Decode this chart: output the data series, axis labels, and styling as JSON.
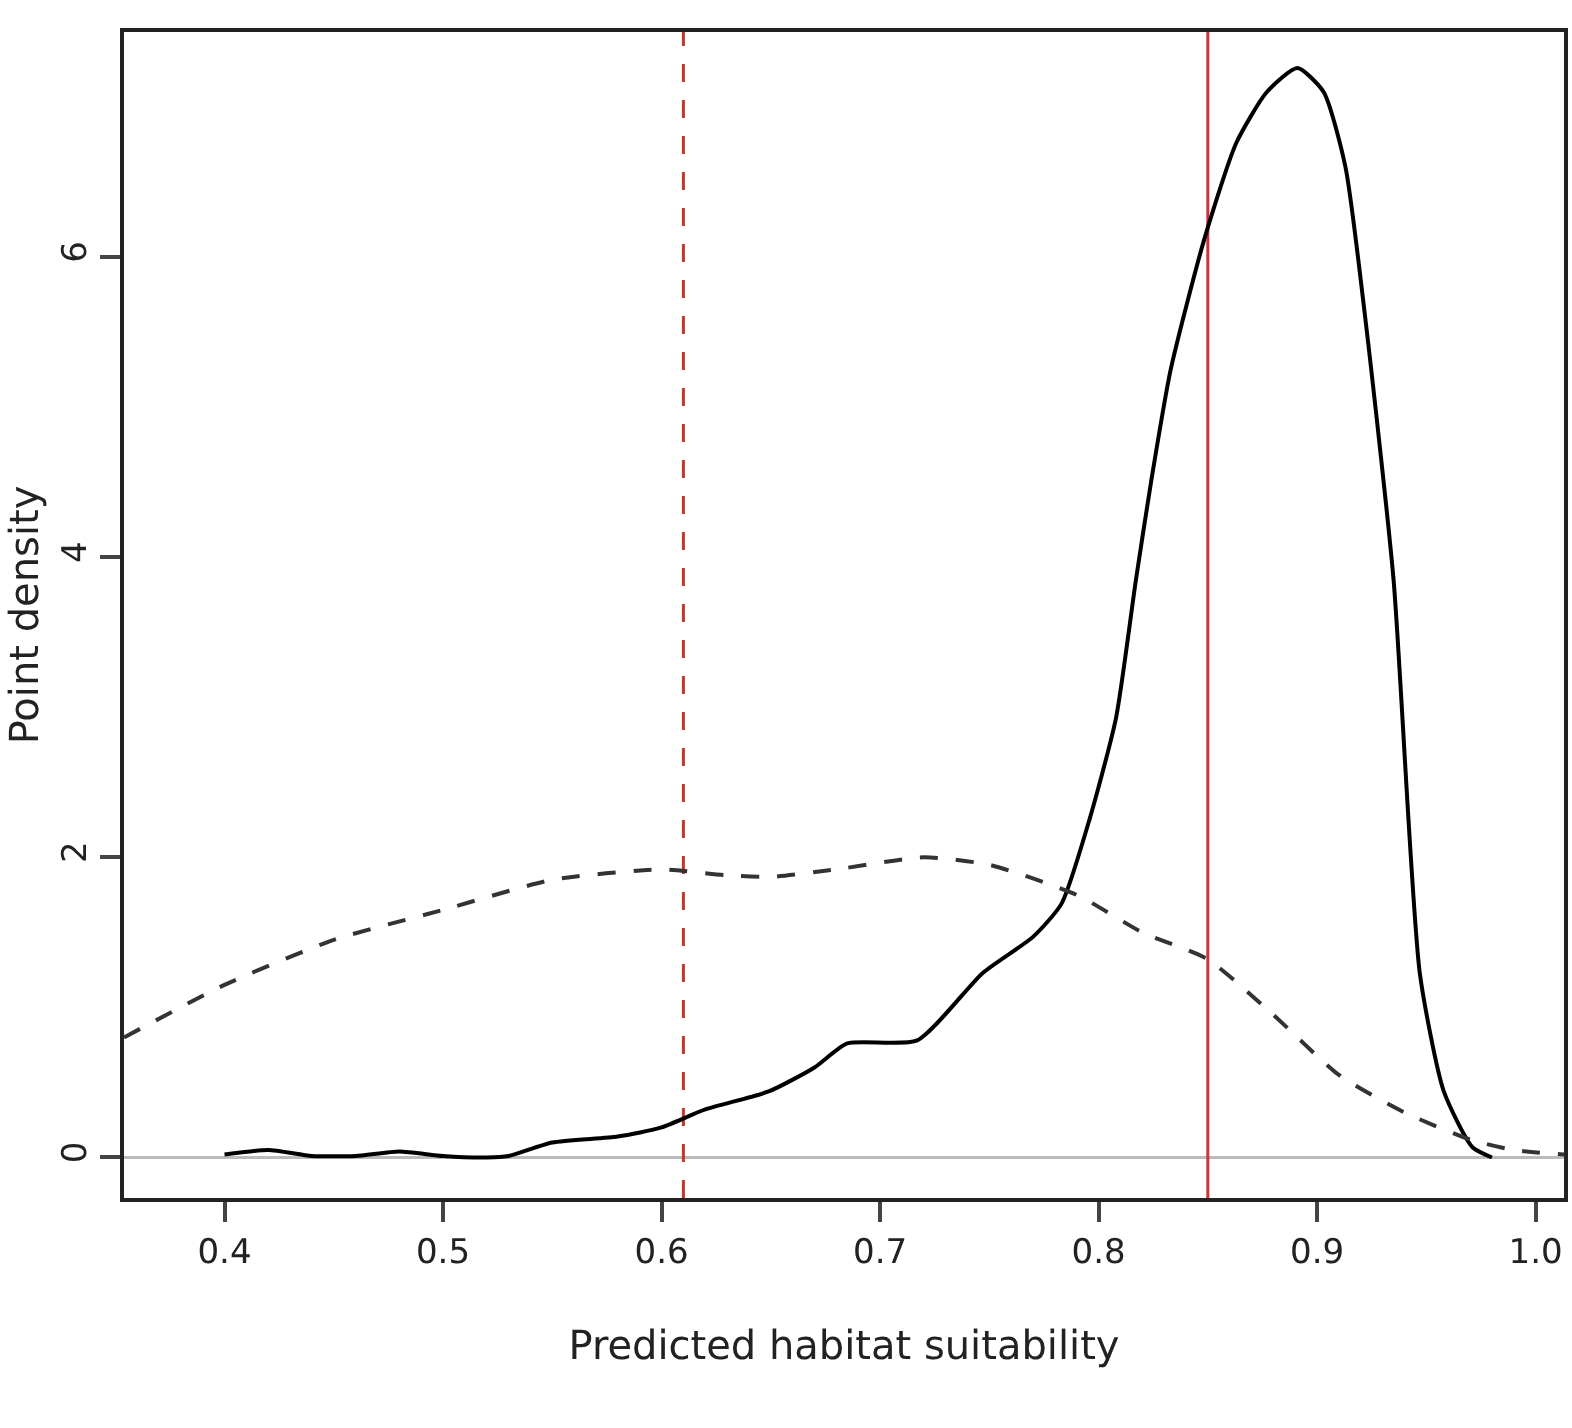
{
  "chart_data": {
    "type": "line",
    "xlabel": "Predicted habitat suitability",
    "ylabel": "Point density",
    "xlim": [
      0.354,
      1.013
    ],
    "ylim": [
      -0.27,
      7.5
    ],
    "xticks": [
      0.4,
      0.5,
      0.6,
      0.7,
      0.8,
      0.9,
      {
        "value": 1.0,
        "label": "1.0"
      }
    ],
    "yticks": [
      0,
      2,
      4,
      6
    ],
    "grid": false,
    "marker": "none",
    "series": [
      {
        "color": "#000000",
        "line_style": "solid",
        "x": [
          0.4,
          0.42,
          0.44,
          0.46,
          0.48,
          0.5,
          0.52,
          0.53,
          0.55,
          0.58,
          0.6,
          0.62,
          0.649,
          0.67,
          0.685,
          0.717,
          0.747,
          0.77,
          0.783,
          0.796,
          0.808,
          0.817,
          0.824,
          0.833,
          0.848,
          0.863,
          0.877,
          0.891,
          0.903,
          0.913,
          0.922,
          0.935,
          0.947,
          0.958,
          0.971,
          0.98
        ],
        "values": [
          0.02,
          0.05,
          0.01,
          0.01,
          0.04,
          0.01,
          0.0,
          0.01,
          0.1,
          0.14,
          0.2,
          0.32,
          0.44,
          0.6,
          0.76,
          0.78,
          1.23,
          1.47,
          1.69,
          2.26,
          2.93,
          3.84,
          4.5,
          5.25,
          6.1,
          6.76,
          7.1,
          7.26,
          7.1,
          6.6,
          5.6,
          3.85,
          1.23,
          0.44,
          0.07,
          0.0
        ]
      },
      {
        "color": "#333333",
        "line_style": "dashed",
        "x": [
          0.354,
          0.4,
          0.45,
          0.5,
          0.55,
          0.6,
          0.63,
          0.65,
          0.68,
          0.72,
          0.75,
          0.79,
          0.82,
          0.85,
          0.88,
          0.91,
          0.94,
          0.97,
          0.99,
          1.013
        ],
        "values": [
          0.8,
          1.15,
          1.45,
          1.65,
          1.85,
          1.92,
          1.88,
          1.87,
          1.92,
          2.0,
          1.95,
          1.75,
          1.5,
          1.32,
          0.95,
          0.55,
          0.3,
          0.12,
          0.05,
          0.02
        ]
      }
    ],
    "ref_lines": [
      {
        "axis": "y",
        "value": 0,
        "color": "#bbbbbb",
        "line_style": "solid"
      },
      {
        "axis": "x",
        "value": 0.61,
        "color": "#c0392b",
        "line_style": "dashed"
      },
      {
        "axis": "x",
        "value": 0.85,
        "color": "#d0303a",
        "line_style": "solid"
      }
    ]
  }
}
